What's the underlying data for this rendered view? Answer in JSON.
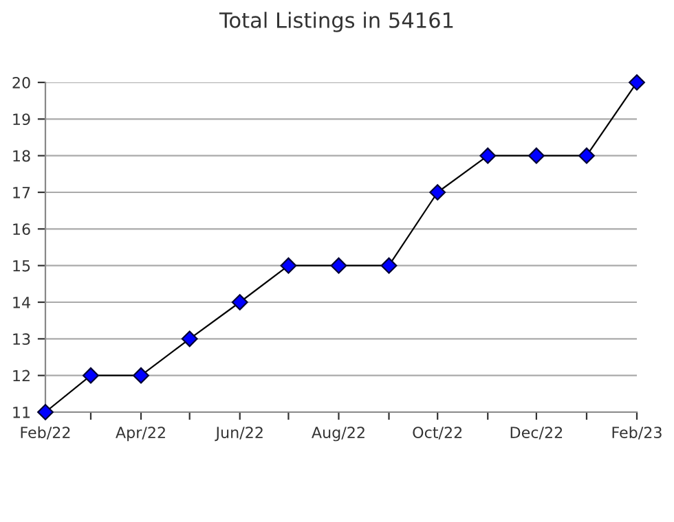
{
  "chart_data": {
    "type": "line",
    "title": "Total Listings in 54161",
    "x": [
      "2022-02",
      "2022-03",
      "2022-04",
      "2022-05",
      "2022-06",
      "2022-07",
      "2022-08",
      "2022-09",
      "2022-10",
      "2022-11",
      "2022-12",
      "2023-01",
      "2023-02"
    ],
    "series": [
      {
        "color": "#0000ff",
        "values": [
          11,
          12,
          12,
          13,
          14,
          15,
          15,
          15,
          17,
          18,
          18,
          18,
          20
        ]
      }
    ],
    "marker": "diamond",
    "line_style": "solid",
    "xlim": [
      "2022-02",
      "2023-02"
    ],
    "xticks": [
      {
        "value": "2022-02",
        "label": "Feb/22"
      },
      {
        "value": "2022-03",
        "label": null
      },
      {
        "value": "2022-04",
        "label": "Apr/22"
      },
      {
        "value": "2022-05",
        "label": null
      },
      {
        "value": "2022-06",
        "label": "Jun/22"
      },
      {
        "value": "2022-07",
        "label": null
      },
      {
        "value": "2022-08",
        "label": "Aug/22"
      },
      {
        "value": "2022-09",
        "label": null
      },
      {
        "value": "2022-10",
        "label": "Oct/22"
      },
      {
        "value": "2022-11",
        "label": null
      },
      {
        "value": "2022-12",
        "label": "Dec/22"
      },
      {
        "value": "2023-01",
        "label": null
      },
      {
        "value": "2023-02",
        "label": "Feb/23"
      }
    ],
    "ylim": [
      11,
      20
    ],
    "yticks": [
      11,
      12,
      13,
      14,
      15,
      16,
      17,
      18,
      19,
      20
    ],
    "grid": "y",
    "legend": false
  }
}
